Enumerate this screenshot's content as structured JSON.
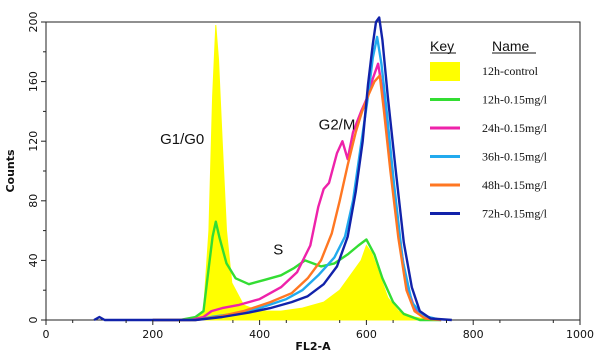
{
  "chart_data": {
    "type": "area",
    "xlabel": "FL2-A",
    "ylabel": "Counts",
    "xlim": [
      0,
      1000
    ],
    "ylim": [
      0,
      200
    ],
    "xticks": [
      "0",
      "200",
      "400",
      "600",
      "800",
      "1000"
    ],
    "yticks": [
      "0",
      "40",
      "80",
      "120",
      "160",
      "200"
    ],
    "legend": {
      "header_key": "Key",
      "header_name": "Name",
      "placement": "top-right"
    },
    "annotations": [
      {
        "text": "G1/G0",
        "x": 255,
        "y": 118
      },
      {
        "text": "G2/M",
        "x": 545,
        "y": 128
      },
      {
        "text": "S",
        "x": 435,
        "y": 44
      }
    ],
    "series": [
      {
        "name": "12h-control",
        "color": "#ffff00",
        "style": "filled",
        "points": [
          [
            140,
            0
          ],
          [
            200,
            0
          ],
          [
            250,
            0
          ],
          [
            280,
            1
          ],
          [
            295,
            6
          ],
          [
            305,
            60
          ],
          [
            312,
            150
          ],
          [
            318,
            198
          ],
          [
            323,
            175
          ],
          [
            330,
            120
          ],
          [
            338,
            60
          ],
          [
            348,
            25
          ],
          [
            370,
            10
          ],
          [
            400,
            6
          ],
          [
            440,
            6
          ],
          [
            480,
            8
          ],
          [
            520,
            12
          ],
          [
            550,
            20
          ],
          [
            570,
            30
          ],
          [
            590,
            40
          ],
          [
            600,
            50
          ],
          [
            610,
            45
          ],
          [
            625,
            30
          ],
          [
            640,
            15
          ],
          [
            660,
            6
          ],
          [
            690,
            2
          ],
          [
            720,
            0
          ],
          [
            740,
            0
          ]
        ]
      },
      {
        "name": "12h-0.15mg/l",
        "color": "#33dd33",
        "style": "line",
        "points": [
          [
            200,
            0
          ],
          [
            250,
            0
          ],
          [
            280,
            2
          ],
          [
            295,
            6
          ],
          [
            305,
            36
          ],
          [
            312,
            56
          ],
          [
            318,
            66
          ],
          [
            325,
            55
          ],
          [
            338,
            38
          ],
          [
            355,
            28
          ],
          [
            380,
            24
          ],
          [
            410,
            27
          ],
          [
            440,
            30
          ],
          [
            465,
            35
          ],
          [
            485,
            40
          ],
          [
            500,
            38
          ],
          [
            515,
            36
          ],
          [
            540,
            38
          ],
          [
            565,
            44
          ],
          [
            585,
            50
          ],
          [
            600,
            54
          ],
          [
            615,
            44
          ],
          [
            630,
            28
          ],
          [
            650,
            12
          ],
          [
            670,
            4
          ],
          [
            700,
            0
          ],
          [
            740,
            0
          ]
        ]
      },
      {
        "name": "24h-0.15mg/l",
        "color": "#ee22aa",
        "style": "line",
        "points": [
          [
            200,
            0
          ],
          [
            270,
            0
          ],
          [
            295,
            2
          ],
          [
            310,
            6
          ],
          [
            330,
            8
          ],
          [
            360,
            10
          ],
          [
            400,
            14
          ],
          [
            440,
            22
          ],
          [
            470,
            32
          ],
          [
            495,
            50
          ],
          [
            510,
            76
          ],
          [
            520,
            88
          ],
          [
            530,
            92
          ],
          [
            545,
            112
          ],
          [
            555,
            120
          ],
          [
            565,
            108
          ],
          [
            575,
            126
          ],
          [
            590,
            140
          ],
          [
            600,
            148
          ],
          [
            612,
            162
          ],
          [
            622,
            172
          ],
          [
            632,
            150
          ],
          [
            645,
            110
          ],
          [
            660,
            60
          ],
          [
            675,
            24
          ],
          [
            690,
            8
          ],
          [
            710,
            2
          ],
          [
            740,
            0
          ]
        ]
      },
      {
        "name": "36h-0.15mg/l",
        "color": "#22aaee",
        "style": "line",
        "points": [
          [
            200,
            0
          ],
          [
            280,
            0
          ],
          [
            310,
            2
          ],
          [
            350,
            4
          ],
          [
            400,
            8
          ],
          [
            450,
            14
          ],
          [
            480,
            20
          ],
          [
            510,
            30
          ],
          [
            540,
            42
          ],
          [
            560,
            56
          ],
          [
            575,
            80
          ],
          [
            590,
            118
          ],
          [
            603,
            150
          ],
          [
            612,
            176
          ],
          [
            620,
            190
          ],
          [
            628,
            172
          ],
          [
            638,
            140
          ],
          [
            652,
            90
          ],
          [
            668,
            40
          ],
          [
            685,
            12
          ],
          [
            705,
            3
          ],
          [
            740,
            0
          ]
        ]
      },
      {
        "name": "48h-0.15mg/l",
        "color": "#ff7722",
        "style": "line",
        "points": [
          [
            200,
            0
          ],
          [
            280,
            0
          ],
          [
            320,
            2
          ],
          [
            370,
            6
          ],
          [
            420,
            12
          ],
          [
            460,
            18
          ],
          [
            490,
            28
          ],
          [
            515,
            40
          ],
          [
            535,
            58
          ],
          [
            550,
            80
          ],
          [
            565,
            104
          ],
          [
            580,
            126
          ],
          [
            592,
            140
          ],
          [
            605,
            152
          ],
          [
            615,
            160
          ],
          [
            625,
            164
          ],
          [
            633,
            140
          ],
          [
            645,
            100
          ],
          [
            660,
            55
          ],
          [
            675,
            20
          ],
          [
            690,
            6
          ],
          [
            710,
            1
          ],
          [
            740,
            0
          ]
        ]
      },
      {
        "name": "72h-0.15mg/l",
        "color": "#1122aa",
        "style": "line",
        "points": [
          [
            90,
            0
          ],
          [
            100,
            2
          ],
          [
            110,
            0
          ],
          [
            200,
            0
          ],
          [
            280,
            0
          ],
          [
            330,
            2
          ],
          [
            380,
            5
          ],
          [
            420,
            8
          ],
          [
            460,
            12
          ],
          [
            490,
            16
          ],
          [
            520,
            24
          ],
          [
            545,
            36
          ],
          [
            565,
            56
          ],
          [
            580,
            86
          ],
          [
            593,
            120
          ],
          [
            603,
            158
          ],
          [
            612,
            185
          ],
          [
            618,
            200
          ],
          [
            624,
            203
          ],
          [
            630,
            188
          ],
          [
            640,
            150
          ],
          [
            655,
            100
          ],
          [
            670,
            52
          ],
          [
            685,
            22
          ],
          [
            700,
            6
          ],
          [
            720,
            1
          ],
          [
            760,
            0
          ]
        ]
      }
    ]
  }
}
